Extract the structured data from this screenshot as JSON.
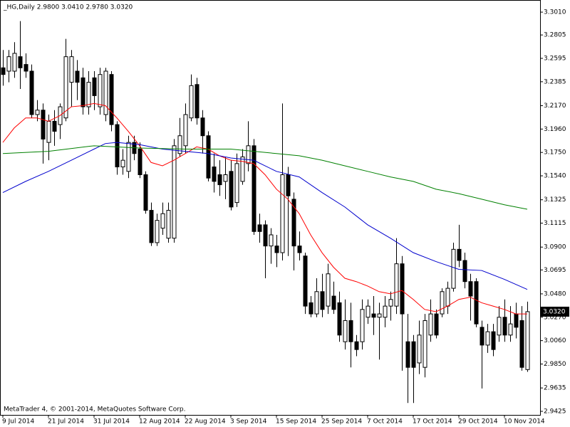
{
  "chart_data": {
    "type": "candlestick",
    "header": "_HG,Daily  2.9800 3.0410 2.9780 3.0320",
    "footer": "MetaTrader 4, © 2001-2014, MetaQuotes Software Corp.",
    "categories": [
      "9 Jul 2014",
      null,
      null,
      null,
      null,
      null,
      null,
      null,
      "21 Jul 2014",
      null,
      null,
      null,
      null,
      null,
      null,
      null,
      "31 Jul 2014",
      null,
      null,
      null,
      null,
      null,
      null,
      null,
      "12 Aug 2014",
      null,
      null,
      null,
      null,
      null,
      null,
      null,
      "22 Aug 2014",
      null,
      null,
      null,
      null,
      null,
      null,
      null,
      "3 Sep 2014",
      null,
      null,
      null,
      null,
      null,
      null,
      null,
      "15 Sep 2014",
      null,
      null,
      null,
      null,
      null,
      null,
      null,
      "25 Sep 2014",
      null,
      null,
      null,
      null,
      null,
      null,
      null,
      "7 Oct 2014",
      null,
      null,
      null,
      null,
      null,
      null,
      null,
      "17 Oct 2014",
      null,
      null,
      null,
      null,
      null,
      null,
      null,
      "29 Oct 2014",
      null,
      null,
      null,
      null,
      null,
      null,
      null,
      "10 Nov 2014",
      null,
      null,
      null,
      null
    ],
    "open": [
      3.251,
      3.248,
      3.248,
      3.261,
      3.254,
      3.248,
      3.209,
      3.213,
      3.184,
      3.203,
      3.2,
      3.206,
      3.238,
      3.248,
      3.242,
      3.216,
      3.242,
      3.216,
      3.209,
      3.245,
      3.2,
      3.162,
      3.158,
      3.184,
      3.178,
      3.155,
      3.123,
      3.094,
      3.107,
      3.098,
      3.098,
      3.174,
      3.181,
      3.206,
      3.236,
      3.206,
      3.19,
      3.162,
      3.155,
      3.149,
      3.158,
      3.13,
      3.149,
      3.165,
      3.181,
      3.11,
      3.11,
      3.091,
      3.091,
      3.085,
      3.155,
      3.133,
      3.091,
      3.082,
      3.04,
      3.03,
      3.05,
      3.037,
      3.046,
      3.04,
      3.005,
      3.024,
      3.005,
      3.005,
      3.027,
      3.03,
      3.027,
      3.027,
      3.037,
      3.037,
      3.075,
      3.005,
      3.005,
      2.986,
      2.982,
      3.011,
      3.03,
      3.03,
      3.037,
      3.053,
      3.088,
      3.078,
      3.059,
      3.059,
      3.018,
      3.002,
      3.014,
      3.011,
      3.027,
      3.011,
      3.03,
      3.024,
      2.98
    ],
    "high": [
      3.267,
      3.267,
      3.274,
      3.293,
      3.264,
      3.254,
      3.222,
      3.219,
      3.209,
      3.213,
      3.219,
      3.277,
      3.267,
      3.258,
      3.251,
      3.248,
      3.248,
      3.251,
      3.251,
      3.248,
      3.203,
      3.178,
      3.19,
      3.19,
      3.184,
      3.158,
      3.13,
      3.12,
      3.13,
      3.13,
      3.187,
      3.206,
      3.219,
      3.245,
      3.242,
      3.213,
      3.194,
      3.174,
      3.168,
      3.171,
      3.168,
      3.174,
      3.178,
      3.203,
      3.187,
      3.12,
      3.114,
      3.107,
      3.101,
      3.219,
      3.162,
      3.139,
      3.104,
      3.085,
      3.046,
      3.062,
      3.066,
      3.075,
      3.059,
      3.05,
      3.043,
      3.04,
      3.011,
      3.043,
      3.043,
      3.046,
      3.04,
      3.046,
      3.05,
      3.098,
      3.082,
      3.03,
      3.011,
      3.024,
      3.03,
      3.043,
      3.034,
      3.053,
      3.059,
      3.094,
      3.11,
      3.085,
      3.066,
      3.062,
      3.024,
      3.021,
      3.021,
      3.037,
      3.043,
      3.037,
      3.04,
      3.037,
      3.041
    ],
    "low": [
      3.235,
      3.238,
      3.242,
      3.232,
      3.242,
      3.206,
      3.203,
      3.165,
      3.168,
      3.181,
      3.187,
      3.203,
      3.216,
      3.222,
      3.209,
      3.209,
      3.213,
      3.209,
      3.203,
      3.194,
      3.155,
      3.155,
      3.152,
      3.168,
      3.152,
      3.12,
      3.091,
      3.091,
      3.101,
      3.094,
      3.094,
      3.171,
      3.174,
      3.203,
      3.2,
      3.174,
      3.149,
      3.139,
      3.136,
      3.133,
      3.123,
      3.126,
      3.146,
      3.158,
      3.101,
      3.094,
      3.062,
      3.075,
      3.072,
      3.078,
      3.082,
      3.069,
      3.078,
      3.03,
      3.027,
      3.027,
      3.027,
      3.03,
      3.03,
      3.005,
      2.998,
      2.982,
      2.992,
      2.998,
      3.021,
      3.011,
      2.989,
      3.018,
      3.024,
      3.03,
      2.979,
      2.95,
      2.95,
      2.976,
      2.973,
      3.005,
      3.008,
      3.027,
      3.03,
      3.05,
      3.072,
      3.053,
      3.024,
      3.018,
      2.963,
      2.995,
      2.992,
      3.005,
      3.005,
      3.005,
      3.008,
      2.979,
      2.978
    ],
    "close": [
      3.245,
      3.261,
      3.264,
      3.251,
      3.248,
      3.209,
      3.213,
      3.187,
      3.203,
      3.194,
      3.216,
      3.261,
      3.261,
      3.238,
      3.216,
      3.238,
      3.226,
      3.245,
      3.248,
      3.2,
      3.162,
      3.168,
      3.184,
      3.174,
      3.155,
      3.123,
      3.094,
      3.114,
      3.12,
      3.123,
      3.181,
      3.19,
      3.209,
      3.235,
      3.206,
      3.19,
      3.152,
      3.149,
      3.146,
      3.155,
      3.126,
      3.165,
      3.171,
      3.181,
      3.104,
      3.104,
      3.091,
      3.101,
      3.085,
      3.155,
      3.136,
      3.091,
      3.085,
      3.037,
      3.03,
      3.05,
      3.034,
      3.066,
      3.034,
      3.011,
      3.024,
      3.005,
      2.998,
      3.034,
      3.037,
      3.027,
      3.03,
      3.037,
      3.043,
      3.075,
      3.03,
      2.982,
      2.982,
      3.011,
      3.024,
      3.03,
      3.011,
      3.05,
      3.053,
      3.088,
      3.078,
      3.059,
      3.046,
      3.021,
      3.002,
      3.014,
      2.998,
      3.027,
      3.011,
      3.021,
      3.018,
      2.982,
      3.032
    ],
    "up_color": "#ffffff",
    "down_color": "#000000",
    "outline_color": "#000000",
    "moving_averages": [
      {
        "color": "#ff0000",
        "x": [
          0,
          2,
          4,
          6,
          8,
          10,
          12,
          14,
          16,
          18,
          20,
          22,
          24,
          26,
          28,
          30,
          32,
          34,
          36,
          38,
          40,
          42,
          44,
          46,
          48,
          50,
          52,
          54,
          56,
          58,
          60,
          62,
          64,
          66,
          68,
          70,
          72,
          74,
          76,
          78,
          80,
          82,
          84,
          86,
          88,
          90,
          92
        ],
        "values": [
          3.184,
          3.197,
          3.206,
          3.206,
          3.203,
          3.208,
          3.216,
          3.217,
          3.219,
          3.217,
          3.206,
          3.194,
          3.181,
          3.166,
          3.163,
          3.168,
          3.174,
          3.18,
          3.178,
          3.172,
          3.168,
          3.167,
          3.165,
          3.155,
          3.142,
          3.133,
          3.12,
          3.101,
          3.085,
          3.072,
          3.062,
          3.059,
          3.055,
          3.05,
          3.048,
          3.051,
          3.043,
          3.034,
          3.032,
          3.037,
          3.043,
          3.045,
          3.04,
          3.037,
          3.034,
          3.03,
          3.03
        ]
      },
      {
        "color": "#0000cd",
        "x": [
          0,
          4,
          8,
          12,
          16,
          18,
          20,
          24,
          28,
          32,
          36,
          40,
          44,
          48,
          52,
          56,
          60,
          64,
          68,
          72,
          76,
          80,
          84,
          88,
          92
        ],
        "values": [
          3.139,
          3.149,
          3.158,
          3.168,
          3.178,
          3.183,
          3.184,
          3.182,
          3.178,
          3.176,
          3.174,
          3.17,
          3.168,
          3.158,
          3.153,
          3.139,
          3.126,
          3.11,
          3.098,
          3.085,
          3.077,
          3.07,
          3.069,
          3.061,
          3.052
        ]
      },
      {
        "color": "#008000",
        "x": [
          0,
          8,
          16,
          24,
          32,
          40,
          48,
          52,
          56,
          60,
          64,
          68,
          72,
          76,
          80,
          84,
          88,
          92
        ],
        "values": [
          3.174,
          3.176,
          3.181,
          3.179,
          3.178,
          3.178,
          3.174,
          3.172,
          3.168,
          3.163,
          3.158,
          3.153,
          3.149,
          3.142,
          3.138,
          3.133,
          3.128,
          3.124
        ]
      }
    ],
    "ylim": [
      2.9393,
      3.3119
    ],
    "yticks": [
      {
        "value": 3.301,
        "label": "3.3010"
      },
      {
        "value": 3.2805,
        "label": "3.2805"
      },
      {
        "value": 3.2595,
        "label": "3.2595"
      },
      {
        "value": 3.2385,
        "label": "3.2385"
      },
      {
        "value": 3.217,
        "label": "3.2170"
      },
      {
        "value": 3.196,
        "label": "3.1960"
      },
      {
        "value": 3.175,
        "label": "3.1750"
      },
      {
        "value": 3.154,
        "label": "3.1540"
      },
      {
        "value": 3.1325,
        "label": "3.1325"
      },
      {
        "value": 3.1115,
        "label": "3.1115"
      },
      {
        "value": 3.09,
        "label": "3.0900"
      },
      {
        "value": 3.0695,
        "label": "3.0695"
      },
      {
        "value": 3.048,
        "label": "3.0480"
      },
      {
        "value": 3.027,
        "label": "3.0270"
      },
      {
        "value": 3.006,
        "label": "3.0060"
      },
      {
        "value": 2.985,
        "label": "2.9850"
      },
      {
        "value": 2.9635,
        "label": "2.9635"
      },
      {
        "value": 2.9425,
        "label": "2.9425"
      }
    ],
    "last_price": {
      "value": 3.032,
      "label": "3.0320"
    }
  }
}
